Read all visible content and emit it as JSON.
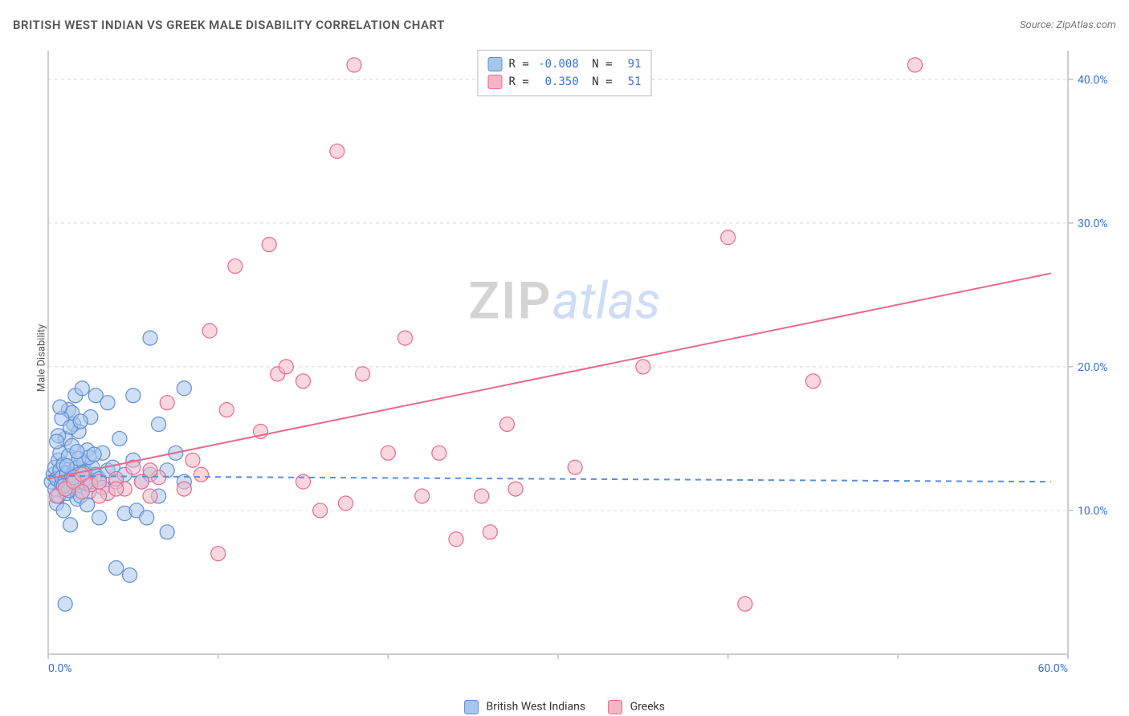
{
  "title": "BRITISH WEST INDIAN VS GREEK MALE DISABILITY CORRELATION CHART",
  "source": "Source: ZipAtlas.com",
  "ylabel": "Male Disability",
  "watermark": {
    "part1": "ZIP",
    "part2": "atlas"
  },
  "chart": {
    "type": "scatter",
    "xlim": [
      0,
      60
    ],
    "ylim": [
      0,
      42
    ],
    "x_ticks": [
      0,
      10,
      20,
      30,
      40,
      50,
      60
    ],
    "x_tick_labels": [
      "0.0%",
      "",
      "",
      "",
      "",
      "",
      "60.0%"
    ],
    "y_ticks": [
      10,
      20,
      30,
      40
    ],
    "y_tick_labels": [
      "10.0%",
      "20.0%",
      "30.0%",
      "40.0%"
    ],
    "grid_color": "#d8d8d8",
    "axis_color": "#bdbdbd",
    "tick_label_color": "#3b6fd6",
    "background": "#ffffff",
    "marker_radius": 9,
    "marker_opacity": 0.55,
    "series": [
      {
        "name": "British West Indians",
        "fill": "#a8c5ec",
        "stroke": "#5e8ed4",
        "R": "-0.008",
        "N": "91",
        "trend": {
          "x1": 0,
          "y1": 12.4,
          "x2": 59,
          "y2": 12.0,
          "dashed": true,
          "color": "#5e8ed4",
          "width": 2
        },
        "points": [
          [
            0.2,
            12.0
          ],
          [
            0.3,
            12.5
          ],
          [
            0.4,
            11.5
          ],
          [
            0.4,
            13.0
          ],
          [
            0.5,
            12.2
          ],
          [
            0.5,
            10.5
          ],
          [
            0.6,
            13.5
          ],
          [
            0.6,
            11.0
          ],
          [
            0.7,
            12.8
          ],
          [
            0.7,
            14.0
          ],
          [
            0.8,
            11.8
          ],
          [
            0.8,
            12.3
          ],
          [
            0.9,
            10.0
          ],
          [
            0.9,
            13.2
          ],
          [
            1.0,
            12.0
          ],
          [
            1.0,
            15.0
          ],
          [
            1.1,
            11.2
          ],
          [
            1.1,
            12.6
          ],
          [
            1.2,
            17.0
          ],
          [
            1.2,
            13.8
          ],
          [
            1.3,
            12.1
          ],
          [
            1.3,
            9.0
          ],
          [
            1.4,
            14.5
          ],
          [
            1.4,
            12.4
          ],
          [
            1.5,
            16.0
          ],
          [
            1.5,
            11.5
          ],
          [
            1.6,
            12.9
          ],
          [
            1.6,
            18.0
          ],
          [
            1.7,
            13.0
          ],
          [
            1.7,
            10.8
          ],
          [
            1.8,
            12.5
          ],
          [
            1.8,
            15.5
          ],
          [
            1.9,
            11.0
          ],
          [
            2.0,
            12.0
          ],
          [
            2.0,
            18.5
          ],
          [
            2.1,
            13.3
          ],
          [
            2.2,
            12.7
          ],
          [
            2.3,
            14.2
          ],
          [
            2.4,
            11.3
          ],
          [
            2.5,
            12.0
          ],
          [
            2.5,
            16.5
          ],
          [
            2.6,
            13.0
          ],
          [
            2.8,
            12.5
          ],
          [
            2.8,
            18.0
          ],
          [
            3.0,
            9.5
          ],
          [
            3.0,
            12.2
          ],
          [
            3.2,
            14.0
          ],
          [
            3.2,
            11.6
          ],
          [
            3.5,
            12.8
          ],
          [
            3.5,
            17.5
          ],
          [
            3.8,
            13.0
          ],
          [
            4.0,
            12.0
          ],
          [
            4.0,
            6.0
          ],
          [
            4.2,
            15.0
          ],
          [
            4.5,
            9.8
          ],
          [
            4.5,
            12.5
          ],
          [
            4.8,
            5.5
          ],
          [
            5.0,
            13.5
          ],
          [
            5.0,
            18.0
          ],
          [
            5.2,
            10.0
          ],
          [
            5.5,
            12.0
          ],
          [
            5.8,
            9.5
          ],
          [
            6.0,
            22.0
          ],
          [
            6.0,
            12.5
          ],
          [
            6.5,
            11.0
          ],
          [
            6.5,
            16.0
          ],
          [
            7.0,
            8.5
          ],
          [
            7.0,
            12.8
          ],
          [
            7.5,
            14.0
          ],
          [
            8.0,
            12.0
          ],
          [
            8.0,
            18.5
          ],
          [
            1.0,
            3.5
          ],
          [
            1.2,
            11.4
          ],
          [
            1.4,
            16.8
          ],
          [
            1.6,
            12.1
          ],
          [
            1.8,
            13.6
          ],
          [
            0.6,
            15.2
          ],
          [
            0.8,
            16.4
          ],
          [
            2.2,
            11.9
          ],
          [
            2.4,
            13.7
          ],
          [
            0.5,
            14.8
          ],
          [
            0.7,
            17.2
          ],
          [
            0.9,
            11.7
          ],
          [
            1.1,
            13.1
          ],
          [
            1.3,
            15.8
          ],
          [
            1.5,
            12.3
          ],
          [
            1.7,
            14.1
          ],
          [
            1.9,
            16.2
          ],
          [
            2.1,
            12.6
          ],
          [
            2.3,
            10.4
          ],
          [
            2.7,
            13.9
          ]
        ]
      },
      {
        "name": "Greeks",
        "fill": "#f3b6c4",
        "stroke": "#e86a8a",
        "R": "0.350",
        "N": "51",
        "trend": {
          "x1": 0,
          "y1": 12.2,
          "x2": 59,
          "y2": 26.5,
          "dashed": false,
          "color": "#e86a8a",
          "width": 2
        },
        "points": [
          [
            0.5,
            11.0
          ],
          [
            1.0,
            11.5
          ],
          [
            1.5,
            12.0
          ],
          [
            2.0,
            12.5
          ],
          [
            2.5,
            11.8
          ],
          [
            3.0,
            12.0
          ],
          [
            3.5,
            11.2
          ],
          [
            4.0,
            12.2
          ],
          [
            4.5,
            11.5
          ],
          [
            5.0,
            13.0
          ],
          [
            5.5,
            12.0
          ],
          [
            6.0,
            11.0
          ],
          [
            6.5,
            12.3
          ],
          [
            7.0,
            17.5
          ],
          [
            8.0,
            11.5
          ],
          [
            9.0,
            12.5
          ],
          [
            9.5,
            22.5
          ],
          [
            10.0,
            7.0
          ],
          [
            10.5,
            17.0
          ],
          [
            11.0,
            27.0
          ],
          [
            12.5,
            15.5
          ],
          [
            13.0,
            28.5
          ],
          [
            13.5,
            19.5
          ],
          [
            14.0,
            20.0
          ],
          [
            15.0,
            12.0
          ],
          [
            15.0,
            19.0
          ],
          [
            16.0,
            10.0
          ],
          [
            17.0,
            35.0
          ],
          [
            17.5,
            10.5
          ],
          [
            18.0,
            41.0
          ],
          [
            18.5,
            19.5
          ],
          [
            20.0,
            14.0
          ],
          [
            21.0,
            22.0
          ],
          [
            22.0,
            11.0
          ],
          [
            23.0,
            14.0
          ],
          [
            24.0,
            8.0
          ],
          [
            25.5,
            11.0
          ],
          [
            26.0,
            8.5
          ],
          [
            27.0,
            16.0
          ],
          [
            27.5,
            11.5
          ],
          [
            31.0,
            13.0
          ],
          [
            35.0,
            20.0
          ],
          [
            40.0,
            29.0
          ],
          [
            41.0,
            3.5
          ],
          [
            45.0,
            19.0
          ],
          [
            51.0,
            41.0
          ],
          [
            3.0,
            11.0
          ],
          [
            4.0,
            11.5
          ],
          [
            6.0,
            12.8
          ],
          [
            8.5,
            13.5
          ],
          [
            2.0,
            11.3
          ]
        ]
      }
    ],
    "bottom_legend": [
      {
        "label": "British West Indians",
        "fill": "#a8c5ec",
        "stroke": "#5e8ed4"
      },
      {
        "label": "Greeks",
        "fill": "#f3b6c4",
        "stroke": "#e86a8a"
      }
    ]
  }
}
